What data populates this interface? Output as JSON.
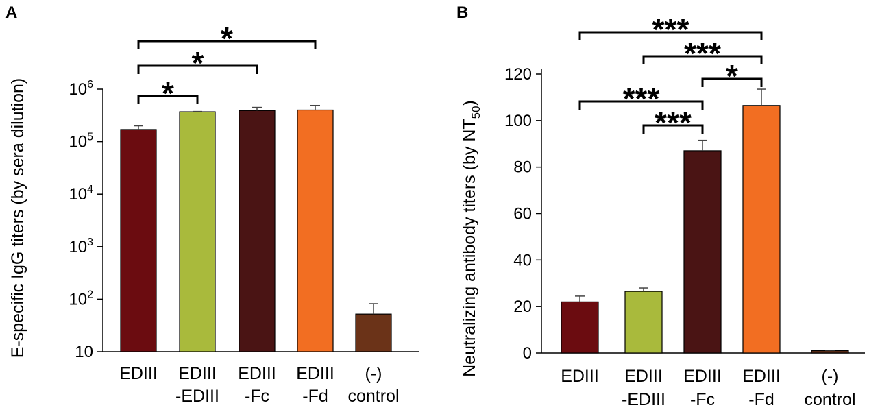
{
  "chart_data": [
    {
      "panel_label": "A",
      "type": "bar",
      "yscale": "log",
      "ylabel": "E-specific IgG titers (by sera dilution)",
      "xlabel": "",
      "ylim": [
        10,
        1000000
      ],
      "yticks": [
        {
          "value": 10,
          "base": "10",
          "exp": ""
        },
        {
          "value": 100,
          "base": "10",
          "exp": "2"
        },
        {
          "value": 1000,
          "base": "10",
          "exp": "3"
        },
        {
          "value": 10000,
          "base": "10",
          "exp": "4"
        },
        {
          "value": 100000,
          "base": "10",
          "exp": "5"
        },
        {
          "value": 1000000,
          "base": "10",
          "exp": "6"
        }
      ],
      "categories": [
        {
          "line1": "EDIII",
          "line2": ""
        },
        {
          "line1": "EDIII",
          "line2": "-EDIII"
        },
        {
          "line1": "EDIII",
          "line2": "-Fc"
        },
        {
          "line1": "EDIII",
          "line2": "-Fd"
        },
        {
          "line1": "(-)",
          "line2": "control"
        }
      ],
      "values": [
        170000,
        370000,
        390000,
        400000,
        52
      ],
      "errors": [
        200000,
        375000,
        450000,
        490000,
        82
      ],
      "colors": [
        "#6b0c10",
        "#a9ba3c",
        "#4a1414",
        "#f26e22",
        "#6b3318"
      ],
      "significance": [
        {
          "from": 0,
          "to": 1,
          "label": "*",
          "level": 0
        },
        {
          "from": 0,
          "to": 2,
          "label": "*",
          "level": 1
        },
        {
          "from": 0,
          "to": 3,
          "label": "*",
          "level": 2
        }
      ]
    },
    {
      "panel_label": "B",
      "type": "bar",
      "yscale": "linear",
      "ylabel_main": "Neutralizing antibody titers (by NT",
      "ylabel_sub": "50",
      "ylabel_end": ")",
      "xlabel": "",
      "ylim": [
        0,
        120
      ],
      "yticks": [
        0,
        20,
        40,
        60,
        80,
        100,
        120
      ],
      "categories": [
        {
          "line1": "EDIII",
          "line2": ""
        },
        {
          "line1": "EDIII",
          "line2": "-EDIII"
        },
        {
          "line1": "EDIII",
          "line2": "-Fc"
        },
        {
          "line1": "EDIII",
          "line2": "-Fd"
        },
        {
          "line1": "(-)",
          "line2": "control"
        }
      ],
      "values": [
        22,
        26.5,
        87,
        106.5,
        1
      ],
      "errors": [
        24.5,
        28,
        91.5,
        113.5,
        1.2
      ],
      "colors": [
        "#6b0c10",
        "#a9ba3c",
        "#4a1414",
        "#f26e22",
        "#6b3318"
      ],
      "significance": [
        {
          "from": 1,
          "to": 2,
          "label": "***",
          "level": 0
        },
        {
          "from": 0,
          "to": 2,
          "label": "***",
          "level": 1
        },
        {
          "from": 2,
          "to": 3,
          "label": "*",
          "level": 2
        },
        {
          "from": 1,
          "to": 3,
          "label": "***",
          "level": 3
        },
        {
          "from": 0,
          "to": 3,
          "label": "***",
          "level": 4
        }
      ]
    }
  ]
}
